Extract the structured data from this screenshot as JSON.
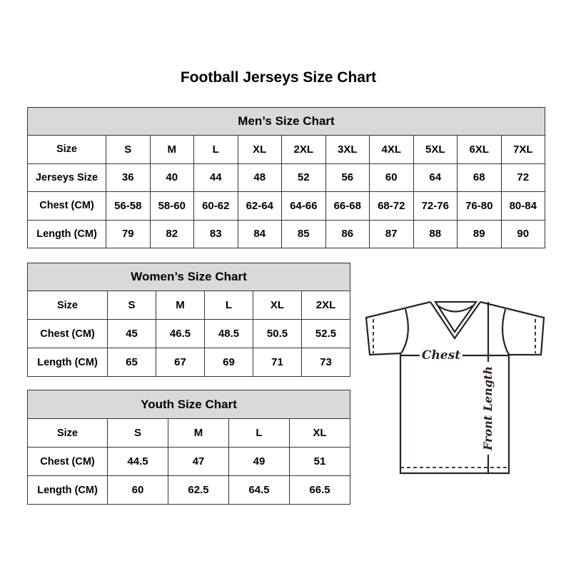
{
  "title": "Football Jerseys Size Chart",
  "men": {
    "heading": "Men’s Size Chart",
    "rows": [
      {
        "label": "Size",
        "values": [
          "S",
          "M",
          "L",
          "XL",
          "2XL",
          "3XL",
          "4XL",
          "5XL",
          "6XL",
          "7XL"
        ]
      },
      {
        "label": "Jerseys Size",
        "values": [
          "36",
          "40",
          "44",
          "48",
          "52",
          "56",
          "60",
          "64",
          "68",
          "72"
        ]
      },
      {
        "label": "Chest (CM)",
        "values": [
          "56-58",
          "58-60",
          "60-62",
          "62-64",
          "64-66",
          "66-68",
          "68-72",
          "72-76",
          "76-80",
          "80-84"
        ]
      },
      {
        "label": "Length (CM)",
        "values": [
          "79",
          "82",
          "83",
          "84",
          "85",
          "86",
          "87",
          "88",
          "89",
          "90"
        ]
      }
    ]
  },
  "women": {
    "heading": "Women’s Size Chart",
    "rows": [
      {
        "label": "Size",
        "values": [
          "S",
          "M",
          "L",
          "XL",
          "2XL"
        ]
      },
      {
        "label": "Chest (CM)",
        "values": [
          "45",
          "46.5",
          "48.5",
          "50.5",
          "52.5"
        ]
      },
      {
        "label": "Length (CM)",
        "values": [
          "65",
          "67",
          "69",
          "71",
          "73"
        ]
      }
    ]
  },
  "youth": {
    "heading": "Youth Size Chart",
    "rows": [
      {
        "label": "Size",
        "values": [
          "S",
          "M",
          "L",
          "XL"
        ]
      },
      {
        "label": "Chest (CM)",
        "values": [
          "44.5",
          "47",
          "49",
          "51"
        ]
      },
      {
        "label": "Length (CM)",
        "values": [
          "60",
          "62.5",
          "64.5",
          "66.5"
        ]
      }
    ]
  },
  "diagram": {
    "chest_label": "Chest",
    "length_label": "Front Length"
  },
  "colors": {
    "header_bg": "#d9d9d9",
    "border": "#333333"
  }
}
